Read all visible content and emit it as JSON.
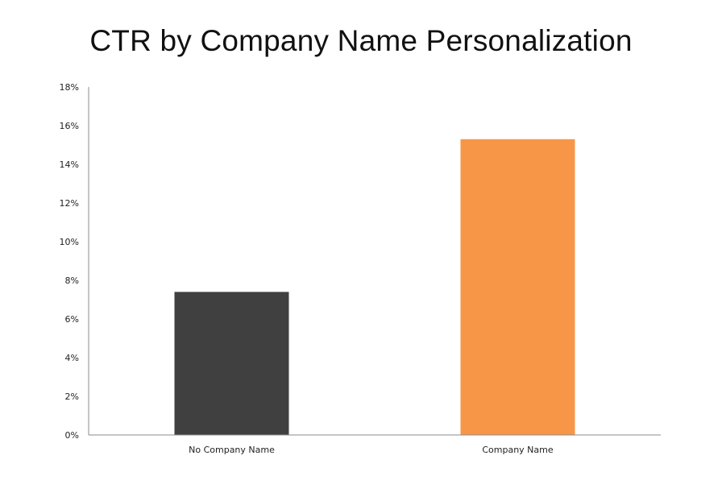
{
  "chart_data": {
    "type": "bar",
    "title": "CTR by Company Name Personalization",
    "xlabel": "",
    "ylabel": "",
    "categories": [
      "No Company Name",
      "Company Name"
    ],
    "values": [
      7.4,
      15.3
    ],
    "value_unit": "%",
    "ylim": [
      0,
      18
    ],
    "yticks": [
      "0%",
      "2%",
      "4%",
      "6%",
      "8%",
      "10%",
      "12%",
      "14%",
      "16%",
      "18%"
    ],
    "bar_colors": [
      "#404040",
      "#F79646"
    ],
    "grid": false,
    "legend": "none"
  }
}
